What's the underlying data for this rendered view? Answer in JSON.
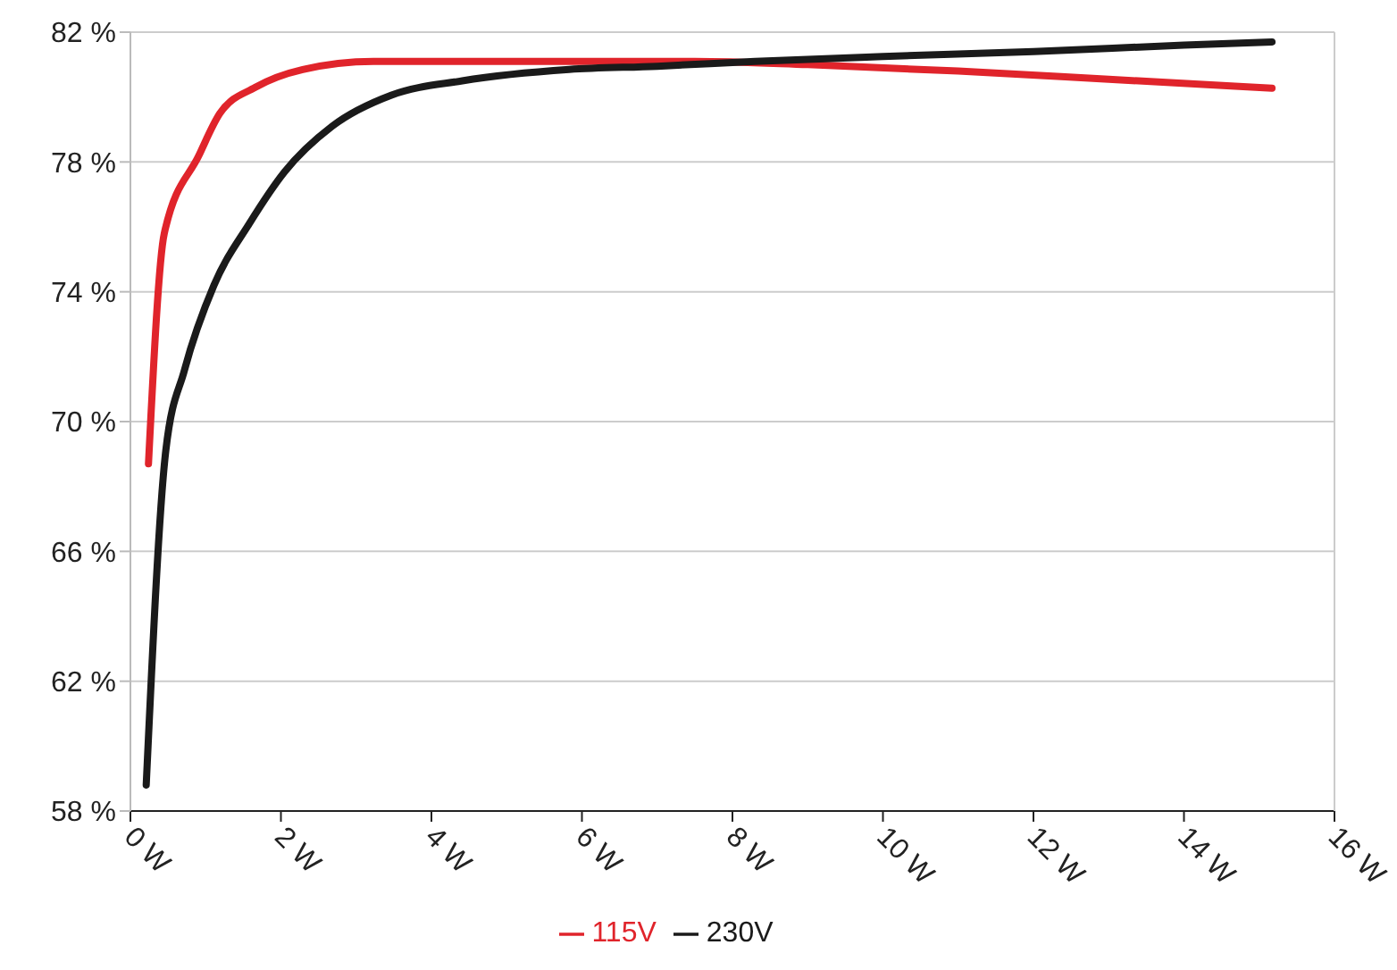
{
  "chart_data": {
    "type": "line",
    "xlim": [
      0,
      16
    ],
    "ylim": [
      58,
      82
    ],
    "xticks": [
      {
        "value": 0,
        "label": "0 W"
      },
      {
        "value": 2,
        "label": "2 W"
      },
      {
        "value": 4,
        "label": "4 W"
      },
      {
        "value": 6,
        "label": "6 W"
      },
      {
        "value": 8,
        "label": "8 W"
      },
      {
        "value": 10,
        "label": "10 W"
      },
      {
        "value": 12,
        "label": "12 W"
      },
      {
        "value": 14,
        "label": "14 W"
      },
      {
        "value": 16,
        "label": "16 W"
      }
    ],
    "yticks": [
      {
        "value": 58,
        "label": "58 %"
      },
      {
        "value": 62,
        "label": "62 %"
      },
      {
        "value": 66,
        "label": "66 %"
      },
      {
        "value": 70,
        "label": "70 %"
      },
      {
        "value": 74,
        "label": "74 %"
      },
      {
        "value": 78,
        "label": "78 %"
      },
      {
        "value": 82,
        "label": "82 %"
      }
    ],
    "grid": "y",
    "legend": "bottom",
    "marker": "none",
    "line_style": "solid",
    "series": [
      {
        "name": "115V",
        "color": "#e0242b",
        "x": [
          0.24,
          0.45,
          0.91,
          1.19,
          1.66,
          2.29,
          3.23,
          4.5,
          6,
          7.5,
          9,
          11,
          13,
          15.17
        ],
        "values": [
          68.7,
          75.8,
          78.2,
          79.5,
          80.3,
          80.85,
          81.1,
          81.1,
          81.1,
          81.1,
          81,
          80.8,
          80.55,
          80.27
        ]
      },
      {
        "name": "230V",
        "color": "#1a1a1a",
        "x": [
          0.21,
          0.47,
          0.72,
          1.11,
          1.58,
          2.05,
          2.68,
          3.47,
          4.41,
          5.83,
          7,
          8.3,
          10,
          12,
          14,
          15.17
        ],
        "values": [
          58.8,
          69.1,
          71.6,
          74.2,
          76.1,
          77.7,
          79.1,
          80.06,
          80.5,
          80.85,
          80.95,
          81.1,
          81.25,
          81.4,
          81.6,
          81.7
        ]
      }
    ]
  }
}
